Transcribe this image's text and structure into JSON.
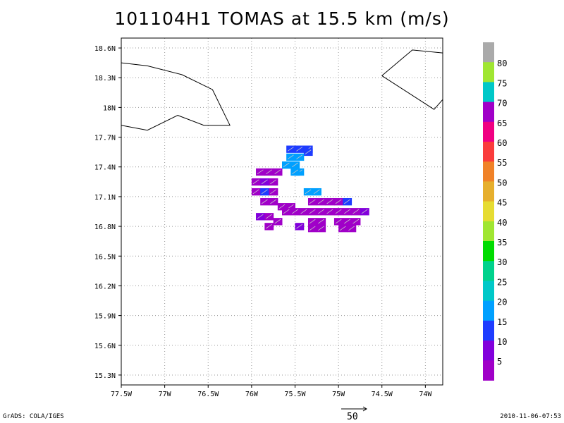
{
  "header": {
    "title": "101104H1 TOMAS at 15.5 km (m/s)"
  },
  "footer": {
    "left": "GrADS: COLA/IGES",
    "right": "2010-11-06-07:53",
    "vector_ref": "50"
  },
  "colorbar": {
    "labels": [
      "5",
      "10",
      "15",
      "20",
      "25",
      "30",
      "35",
      "40",
      "45",
      "50",
      "55",
      "60",
      "65",
      "70",
      "75",
      "80"
    ],
    "colors": [
      "#a000c8",
      "#8200dc",
      "#1e3cff",
      "#00a0ff",
      "#00c8c8",
      "#00d28c",
      "#00dc00",
      "#a0e632",
      "#e6dc32",
      "#e6af2d",
      "#f08228",
      "#fa3c3c",
      "#f00082",
      "#a000c8",
      "#00c8c8",
      "#a0e632",
      "#aaaaaa"
    ]
  },
  "chart_data": {
    "type": "heatmap",
    "title": "101104H1 TOMAS at 15.5 km (m/s)",
    "xlabel": "",
    "ylabel": "",
    "x_ticks": [
      "77.5W",
      "77W",
      "76.5W",
      "76W",
      "75.5W",
      "75W",
      "74.5W",
      "74W"
    ],
    "y_ticks": [
      "18.6N",
      "18.3N",
      "18N",
      "17.7N",
      "17.4N",
      "17.1N",
      "16.8N",
      "16.5N",
      "16.2N",
      "15.9N",
      "15.6N",
      "15.3N"
    ],
    "xlim": [
      -77.5,
      -73.8
    ],
    "ylim": [
      15.2,
      18.7
    ],
    "grid": true,
    "coastlines": [
      [
        [
          -77.5,
          18.45
        ],
        [
          -77.2,
          18.42
        ],
        [
          -76.8,
          18.33
        ],
        [
          -76.45,
          18.18
        ],
        [
          -76.25,
          17.82
        ],
        [
          -76.55,
          17.82
        ],
        [
          -76.85,
          17.92
        ],
        [
          -77.2,
          17.77
        ],
        [
          -77.5,
          17.82
        ]
      ],
      [
        [
          -74.5,
          18.32
        ],
        [
          -74.15,
          18.58
        ],
        [
          -73.8,
          18.55
        ]
      ],
      [
        [
          -74.5,
          18.32
        ],
        [
          -73.9,
          17.98
        ],
        [
          -73.8,
          18.08
        ]
      ]
    ],
    "cells": [
      [
        -75.55,
        17.58,
        15
      ],
      [
        -75.45,
        17.58,
        15
      ],
      [
        -75.35,
        17.58,
        15
      ],
      [
        -75.35,
        17.55,
        15
      ],
      [
        -75.55,
        17.5,
        20
      ],
      [
        -75.45,
        17.5,
        20
      ],
      [
        -75.6,
        17.42,
        20
      ],
      [
        -75.5,
        17.42,
        20
      ],
      [
        -75.45,
        17.35,
        20
      ],
      [
        -75.5,
        17.35,
        20
      ],
      [
        -75.9,
        17.35,
        5
      ],
      [
        -75.8,
        17.35,
        5
      ],
      [
        -75.7,
        17.35,
        5
      ],
      [
        -75.95,
        17.25,
        5
      ],
      [
        -75.85,
        17.25,
        10
      ],
      [
        -75.75,
        17.25,
        5
      ],
      [
        -75.95,
        17.15,
        5
      ],
      [
        -75.85,
        17.15,
        15
      ],
      [
        -75.75,
        17.15,
        5
      ],
      [
        -75.85,
        17.05,
        5
      ],
      [
        -75.75,
        17.05,
        5
      ],
      [
        -75.65,
        17.0,
        5
      ],
      [
        -75.55,
        17.0,
        5
      ],
      [
        -75.35,
        17.15,
        20
      ],
      [
        -75.25,
        17.15,
        20
      ],
      [
        -75.3,
        17.05,
        5
      ],
      [
        -75.2,
        17.05,
        5
      ],
      [
        -75.1,
        17.05,
        5
      ],
      [
        -75.0,
        17.05,
        5
      ],
      [
        -74.9,
        17.05,
        15
      ],
      [
        -75.6,
        16.95,
        5
      ],
      [
        -75.5,
        16.95,
        5
      ],
      [
        -75.4,
        16.95,
        5
      ],
      [
        -75.3,
        16.95,
        5
      ],
      [
        -75.2,
        16.95,
        5
      ],
      [
        -75.1,
        16.95,
        5
      ],
      [
        -75.0,
        16.95,
        5
      ],
      [
        -74.9,
        16.95,
        5
      ],
      [
        -74.8,
        16.95,
        5
      ],
      [
        -74.7,
        16.95,
        10
      ],
      [
        -75.9,
        16.9,
        10
      ],
      [
        -75.8,
        16.9,
        5
      ],
      [
        -75.7,
        16.85,
        5
      ],
      [
        -75.3,
        16.85,
        5
      ],
      [
        -75.2,
        16.85,
        5
      ],
      [
        -75.0,
        16.85,
        5
      ],
      [
        -74.9,
        16.85,
        5
      ],
      [
        -74.8,
        16.85,
        5
      ],
      [
        -75.8,
        16.8,
        5
      ],
      [
        -75.45,
        16.8,
        10
      ],
      [
        -75.3,
        16.78,
        5
      ],
      [
        -75.2,
        16.78,
        5
      ],
      [
        -74.95,
        16.78,
        5
      ],
      [
        -74.85,
        16.78,
        5
      ]
    ]
  }
}
